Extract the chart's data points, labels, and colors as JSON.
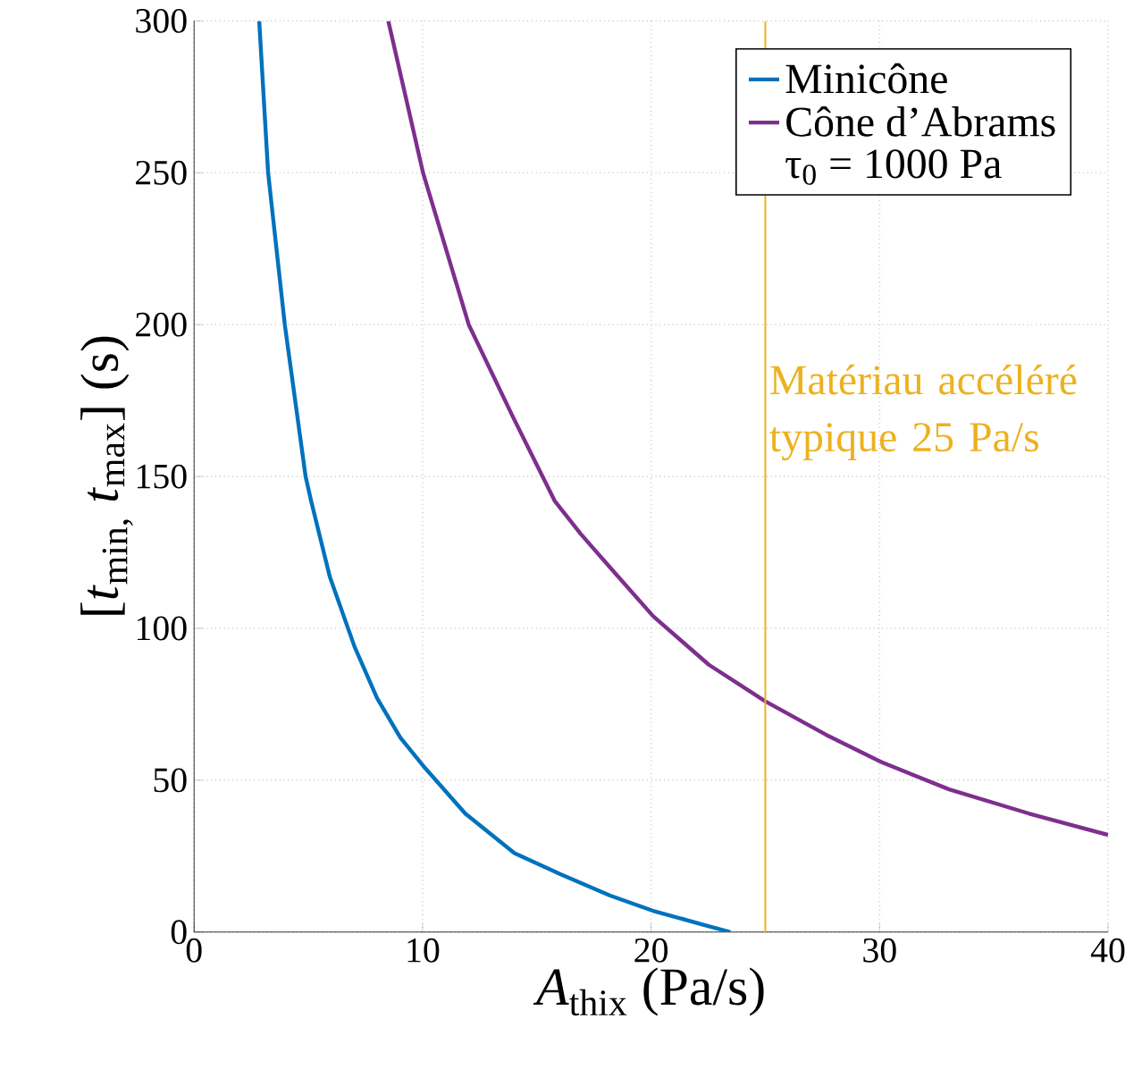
{
  "chart_data": {
    "type": "line",
    "xlabel": "*A*$_{thix}$ (Pa/s)",
    "ylabel": "[*t*$_{min,}$ *t*$_{max}$] (s)",
    "xlim": [
      0,
      40
    ],
    "ylim": [
      0,
      300
    ],
    "xticks": [
      0,
      10,
      20,
      30,
      40
    ],
    "yticks": [
      0,
      50,
      100,
      150,
      200,
      250,
      300
    ],
    "grid": true,
    "legend": "top right",
    "line_style": "solid",
    "marker": "none",
    "annotations": [
      "τ$_{0}$ = 1000 Pa"
    ],
    "ref_lines": [
      {
        "axis": "x",
        "value": 25,
        "label": "Matériau accéléré typique 25 Pa/s",
        "color": "#edb120"
      }
    ],
    "series": [
      {
        "name": "Minicône",
        "color": "#0072bd",
        "x": [
          2.85,
          3.24,
          3.97,
          4.88,
          5.12,
          5.94,
          7.02,
          8.01,
          9.03,
          10.11,
          11.87,
          14.02,
          16.05,
          18.21,
          20.09,
          22.25,
          23.47
        ],
        "values": [
          300,
          250,
          200,
          150,
          142,
          117,
          94,
          77,
          64,
          54,
          39,
          26,
          19,
          12,
          7,
          2.5,
          0
        ]
      },
      {
        "name": "Cône d’Abrams",
        "color": "#7e2f8e",
        "x": [
          8.5,
          10.02,
          12.02,
          13.93,
          15.78,
          16.93,
          18.21,
          20.09,
          22.53,
          25.0,
          27.65,
          30.07,
          33.04,
          36.55,
          40
        ],
        "values": [
          300,
          250,
          200,
          170,
          142,
          131,
          120,
          104,
          88,
          76,
          65,
          56,
          47,
          39,
          32
        ]
      }
    ]
  }
}
